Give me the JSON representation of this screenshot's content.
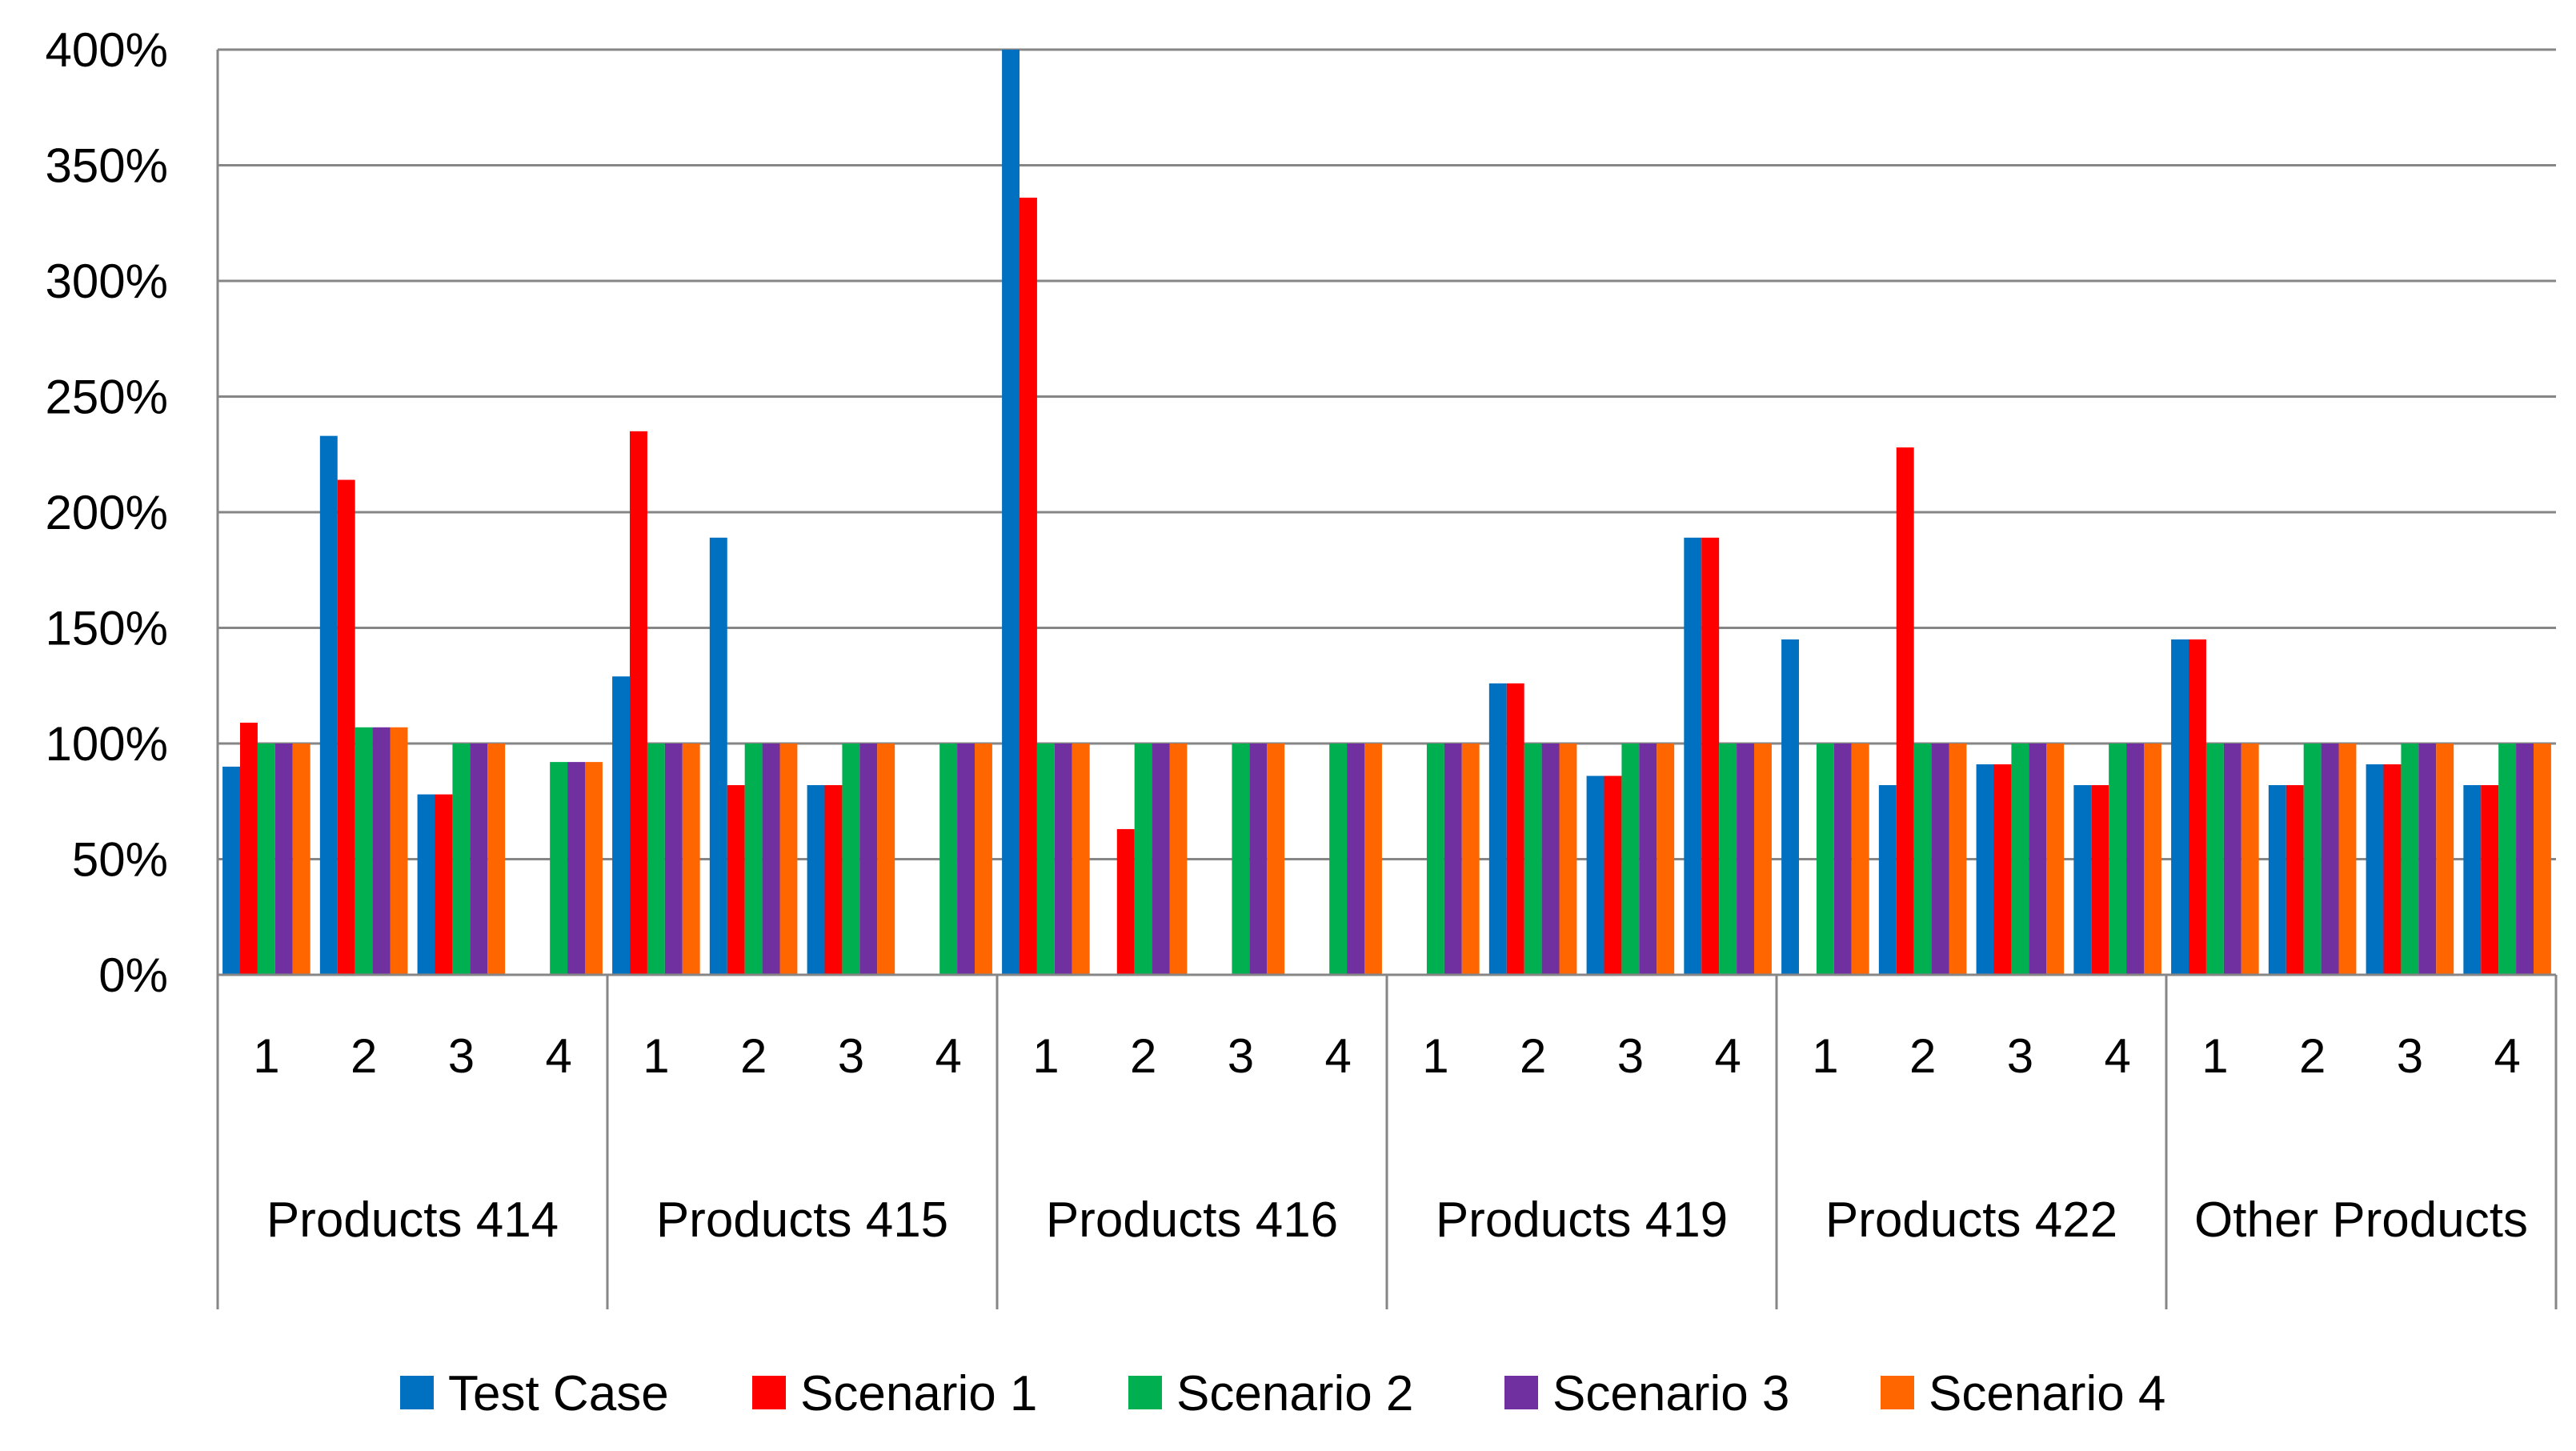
{
  "chart_data": {
    "type": "bar",
    "title": "",
    "xlabel": "",
    "ylabel": "",
    "ylim": [
      0,
      400
    ],
    "yticks": [
      "0%",
      "50%",
      "100%",
      "150%",
      "200%",
      "250%",
      "300%",
      "350%",
      "400%"
    ],
    "grid": true,
    "legend_position": "bottom",
    "groups": [
      "Products 414",
      "Products 415",
      "Products 416",
      "Products 419",
      "Products 422",
      "Other Products"
    ],
    "subcategories": [
      "1",
      "2",
      "3",
      "4"
    ],
    "series": [
      {
        "name": "Test Case",
        "color": "#0070C0",
        "values": [
          90,
          233,
          78,
          0,
          129,
          189,
          82,
          0,
          400,
          0,
          0,
          0,
          0,
          126,
          86,
          189,
          145,
          82,
          91,
          82,
          145,
          82,
          91,
          82
        ]
      },
      {
        "name": "Scenario 1",
        "color": "#FF0000",
        "values": [
          109,
          214,
          78,
          0,
          235,
          82,
          82,
          0,
          336,
          63,
          0,
          0,
          0,
          126,
          86,
          189,
          0,
          228,
          91,
          82,
          145,
          82,
          91,
          82
        ]
      },
      {
        "name": "Scenario 2",
        "color": "#00B050",
        "values": [
          100,
          107,
          100,
          92,
          100,
          100,
          100,
          100,
          100,
          100,
          100,
          100,
          100,
          100,
          100,
          100,
          100,
          100,
          100,
          100,
          100,
          100,
          100,
          100
        ]
      },
      {
        "name": "Scenario 3",
        "color": "#7030A0",
        "values": [
          100,
          107,
          100,
          92,
          100,
          100,
          100,
          100,
          100,
          100,
          100,
          100,
          100,
          100,
          100,
          100,
          100,
          100,
          100,
          100,
          100,
          100,
          100,
          100
        ]
      },
      {
        "name": "Scenario 4",
        "color": "#FF6600",
        "values": [
          100,
          107,
          100,
          92,
          100,
          100,
          100,
          100,
          100,
          100,
          100,
          100,
          100,
          100,
          100,
          100,
          100,
          100,
          100,
          100,
          100,
          100,
          100,
          100
        ]
      }
    ]
  }
}
